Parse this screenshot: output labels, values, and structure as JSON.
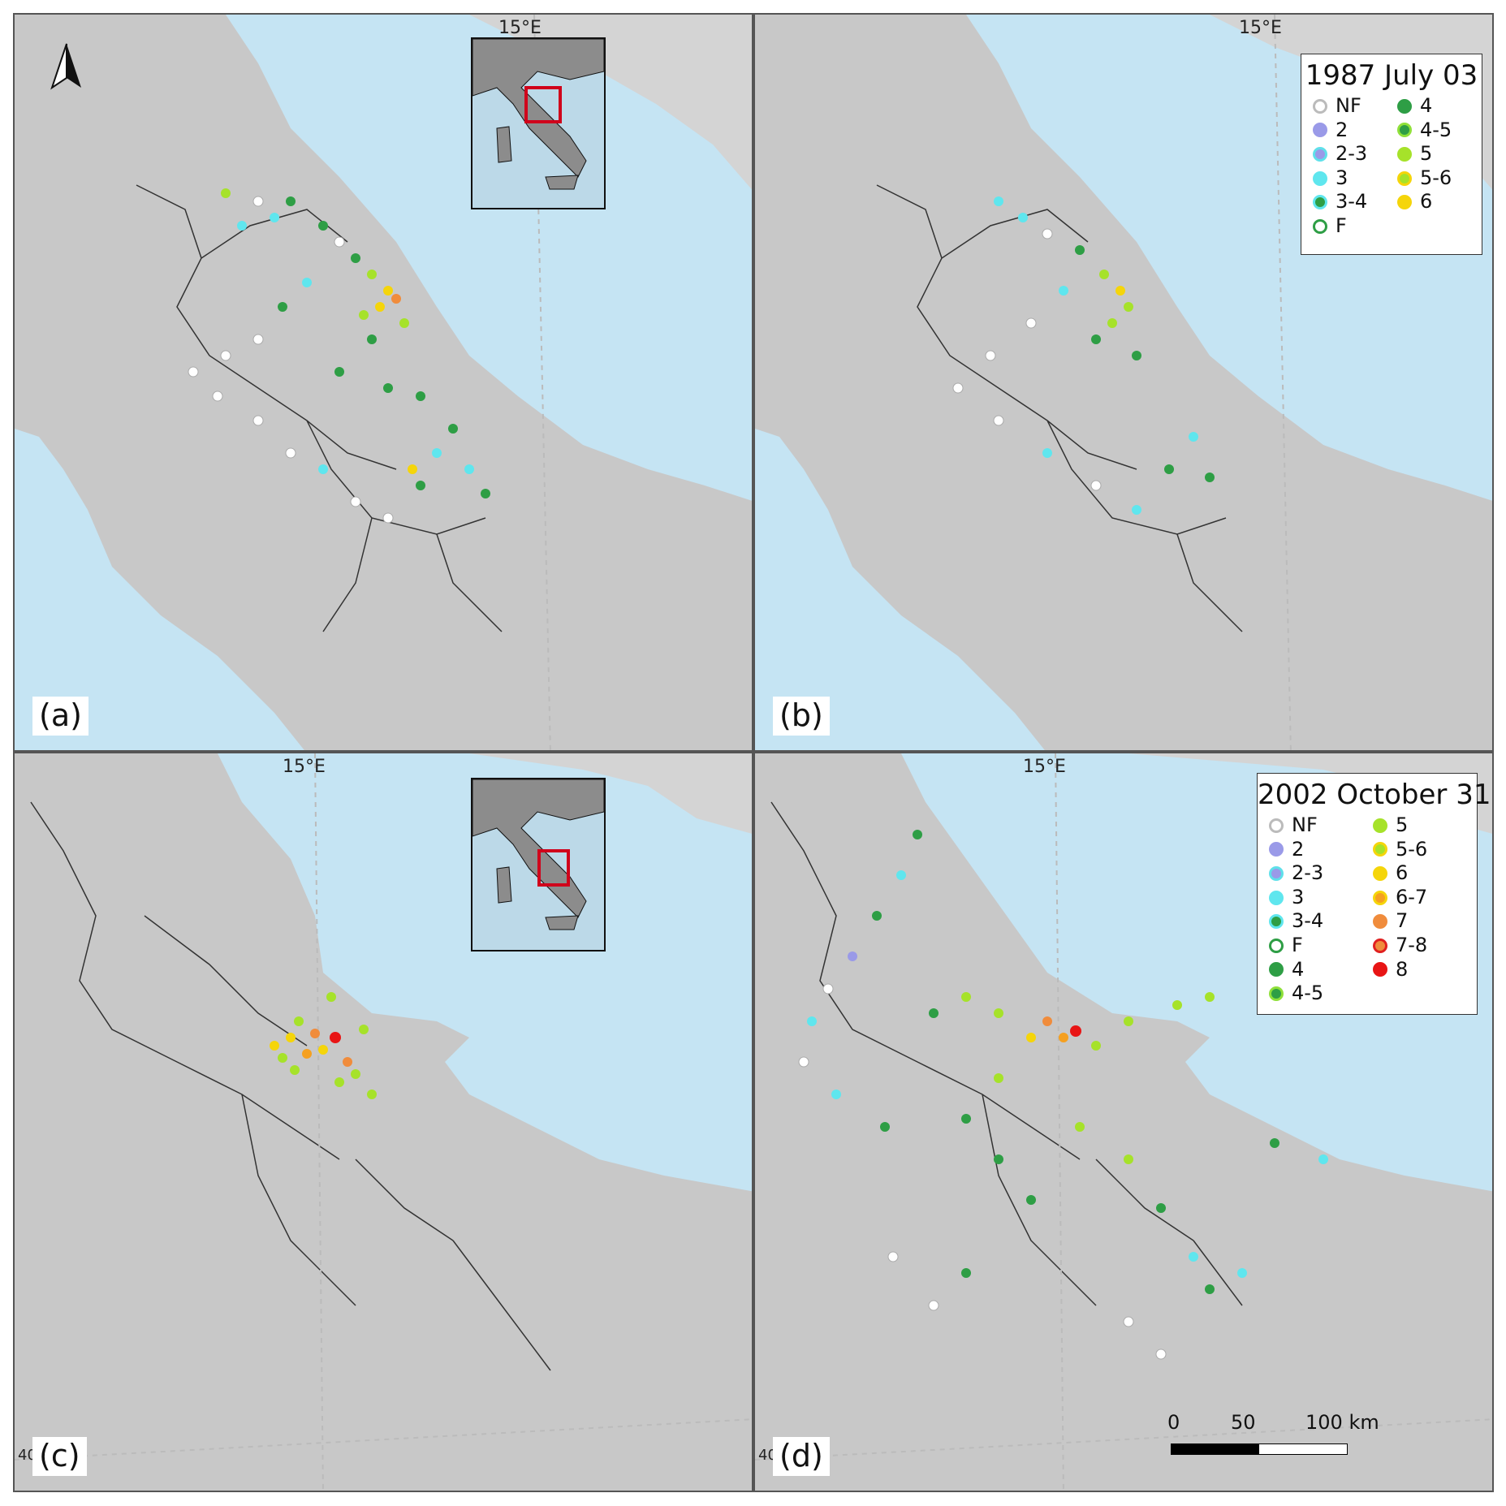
{
  "panels": {
    "a": {
      "label": "(a)",
      "meridian": "15°E"
    },
    "b": {
      "label": "(b)",
      "meridian": "15°E"
    },
    "c": {
      "label": "(c)",
      "meridian": "15°E",
      "lat": "40"
    },
    "d": {
      "label": "(d)",
      "meridian": "15°E",
      "lat": "40"
    }
  },
  "legend_1987": {
    "title": "1987 July 03",
    "items": [
      {
        "label": "NF",
        "fill": "#ffffff",
        "stroke": "#bbbbbb"
      },
      {
        "label": "4",
        "fill": "#2e9e45",
        "stroke": "#2e9e45"
      },
      {
        "label": "2",
        "fill": "#9a9ae8",
        "stroke": "#9a9ae8"
      },
      {
        "label": "4-5",
        "fill": "#2e9e45",
        "stroke": "#8fe03a"
      },
      {
        "label": "2-3",
        "fill": "#9a9ae8",
        "stroke": "#5fe0ea"
      },
      {
        "label": "5",
        "fill": "#a6e22a",
        "stroke": "#a6e22a"
      },
      {
        "label": "3",
        "fill": "#5fe6ee",
        "stroke": "#5fe6ee"
      },
      {
        "label": "5-6",
        "fill": "#a6e22a",
        "stroke": "#f5d50a"
      },
      {
        "label": "3-4",
        "fill": "#2e9e45",
        "stroke": "#5fe6ee"
      },
      {
        "label": "6",
        "fill": "#f5d50a",
        "stroke": "#f5d50a"
      },
      {
        "label": "F",
        "fill": "#ffffff",
        "stroke": "#2e9e45"
      }
    ]
  },
  "legend_2002": {
    "title": "2002 October 31",
    "items": [
      {
        "label": "NF",
        "fill": "#ffffff",
        "stroke": "#bbbbbb"
      },
      {
        "label": "5",
        "fill": "#a6e22a",
        "stroke": "#a6e22a"
      },
      {
        "label": "2",
        "fill": "#9a9ae8",
        "stroke": "#9a9ae8"
      },
      {
        "label": "5-6",
        "fill": "#a6e22a",
        "stroke": "#f5d50a"
      },
      {
        "label": "2-3",
        "fill": "#9a9ae8",
        "stroke": "#5fe0ea"
      },
      {
        "label": "6",
        "fill": "#f5d50a",
        "stroke": "#f5d50a"
      },
      {
        "label": "3",
        "fill": "#5fe6ee",
        "stroke": "#5fe6ee"
      },
      {
        "label": "6-7",
        "fill": "#f5a020",
        "stroke": "#f5d50a"
      },
      {
        "label": "3-4",
        "fill": "#2e9e45",
        "stroke": "#5fe6ee"
      },
      {
        "label": "7",
        "fill": "#f08c3c",
        "stroke": "#f08c3c"
      },
      {
        "label": "F",
        "fill": "#ffffff",
        "stroke": "#2e9e45"
      },
      {
        "label": "7-8",
        "fill": "#f08c3c",
        "stroke": "#e02020"
      },
      {
        "label": "4",
        "fill": "#2e9e45",
        "stroke": "#2e9e45"
      },
      {
        "label": "8",
        "fill": "#e81515",
        "stroke": "#e81515"
      },
      {
        "label": "4-5",
        "fill": "#2e9e45",
        "stroke": "#8fe03a"
      }
    ]
  },
  "scale": {
    "labels": [
      "0",
      "50",
      "100 km"
    ]
  },
  "colors": {
    "sea": "#c5e4f3",
    "land": "#c8c8c8",
    "neighbor_land": "#d4d4d4",
    "inset_frame": "#d0021b",
    "white": "#ffffff",
    "blue": "#9a9ae8",
    "cyan": "#5fe6ee",
    "green": "#2e9e45",
    "lime": "#a6e22a",
    "yellow": "#f5d50a",
    "orange": "#f08c3c",
    "red": "#e81515"
  }
}
